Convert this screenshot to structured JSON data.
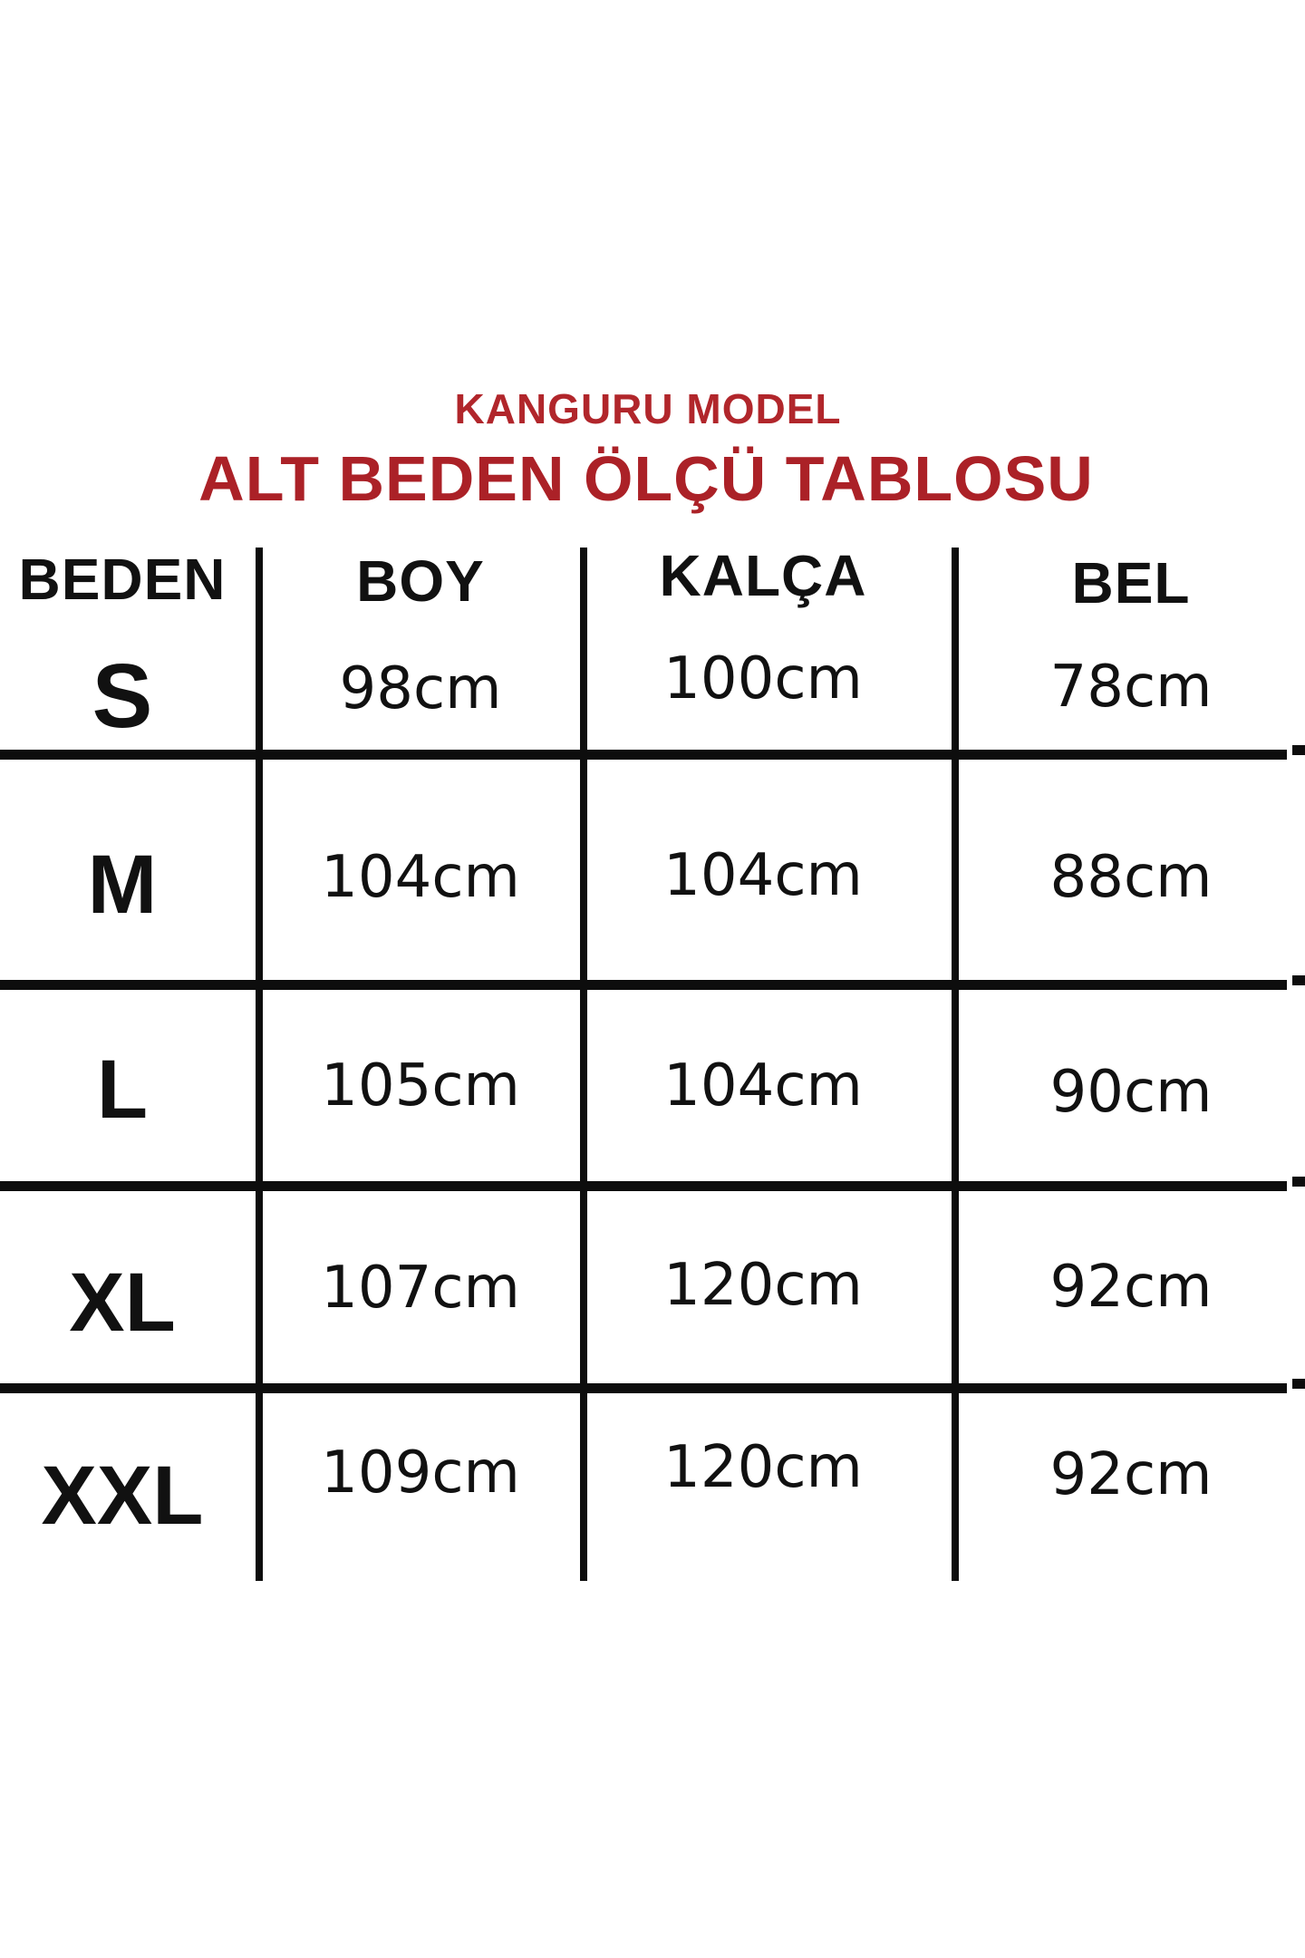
{
  "page": {
    "background": "#ffffff"
  },
  "title": {
    "subtitle": "KANGURU MODEL",
    "main": "ALT BEDEN ÖLÇÜ TABLOSU",
    "color": "#B1262B"
  },
  "table": {
    "headers": [
      "BEDEN",
      "BOY",
      "KALÇA",
      "BEL"
    ],
    "rows": [
      {
        "size": "S",
        "boy": "98cm",
        "kalca": "100cm",
        "bel": "78cm"
      },
      {
        "size": "M",
        "boy": "104cm",
        "kalca": "104cm",
        "bel": "88cm"
      },
      {
        "size": "L",
        "boy": "105cm",
        "kalca": "104cm",
        "bel": "90cm"
      },
      {
        "size": "XL",
        "boy": "107cm",
        "kalca": "120cm",
        "bel": "92cm"
      },
      {
        "size": "XXL",
        "boy": "109cm",
        "kalca": "120cm",
        "bel": "92cm"
      }
    ],
    "line_color": "#0d0d0d",
    "text_color": "#111111"
  },
  "chart_data": {
    "type": "table",
    "title": "ALT BEDEN ÖLÇÜ TABLOSU",
    "subtitle": "KANGURU MODEL",
    "columns": [
      "BEDEN",
      "BOY",
      "KALÇA",
      "BEL"
    ],
    "rows": [
      [
        "S",
        "98cm",
        "100cm",
        "78cm"
      ],
      [
        "M",
        "104cm",
        "104cm",
        "88cm"
      ],
      [
        "L",
        "105cm",
        "104cm",
        "90cm"
      ],
      [
        "XL",
        "107cm",
        "120cm",
        "92cm"
      ],
      [
        "XXL",
        "109cm",
        "120cm",
        "92cm"
      ]
    ]
  }
}
